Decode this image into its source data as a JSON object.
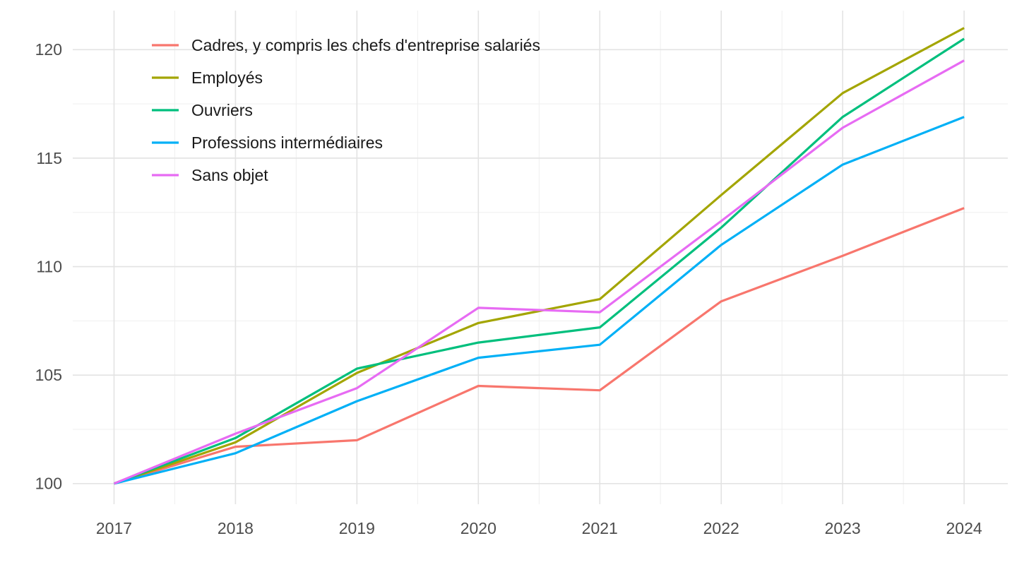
{
  "chart_data": {
    "type": "line",
    "x": [
      2017,
      2018,
      2019,
      2020,
      2021,
      2022,
      2023,
      2024
    ],
    "x_tick_labels": [
      "2017",
      "2018",
      "2019",
      "2020",
      "2021",
      "2022",
      "2023",
      "2024"
    ],
    "y_major_ticks": [
      100,
      105,
      110,
      115,
      120
    ],
    "y_tick_labels": [
      "100",
      "105",
      "110",
      "115",
      "120"
    ],
    "series": [
      {
        "id": "cadres",
        "name": "Cadres, y compris les chefs d'entreprise salariés",
        "color": "#F8766D",
        "values": [
          100,
          101.7,
          102.0,
          104.5,
          104.3,
          108.4,
          110.5,
          112.7
        ]
      },
      {
        "id": "employes",
        "name": "Employés",
        "color": "#A3A500",
        "values": [
          100,
          101.9,
          105.1,
          107.4,
          108.5,
          113.3,
          118.0,
          121.0
        ]
      },
      {
        "id": "ouvriers",
        "name": "Ouvriers",
        "color": "#00BF7D",
        "values": [
          100,
          102.1,
          105.3,
          106.5,
          107.2,
          111.8,
          116.9,
          120.5
        ]
      },
      {
        "id": "professions-intermediaires",
        "name": "Professions intermédiaires",
        "color": "#00B0F6",
        "values": [
          100,
          101.4,
          103.8,
          105.8,
          106.4,
          111.0,
          114.7,
          116.9
        ]
      },
      {
        "id": "sans-objet",
        "name": "Sans objet",
        "color": "#E76BF3",
        "values": [
          100,
          102.3,
          104.4,
          108.1,
          107.9,
          112.1,
          116.4,
          119.5
        ]
      }
    ],
    "title": "",
    "xlabel": "",
    "ylabel": "",
    "xlim": [
      2016.66,
      2024.36
    ],
    "ylim": [
      99.05,
      121.8
    ],
    "grid": true,
    "minor_grid": true,
    "legend_position": "top-left-inside"
  },
  "styles": {
    "background": "#FFFFFF",
    "grid_major_color": "#E3E3E3",
    "grid_minor_color": "#EFEFEF",
    "axis_text_color": "#4D4D4D",
    "legend_text_color": "#1A1A1A"
  }
}
